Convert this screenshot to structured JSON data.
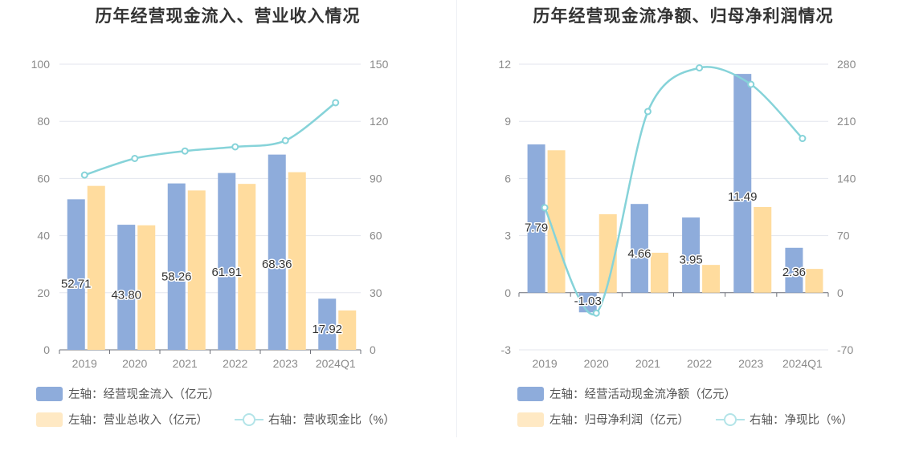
{
  "chart_data": [
    {
      "type": "bar",
      "title": "历年经营现金流入、营业收入情况",
      "categories": [
        "2019",
        "2020",
        "2021",
        "2022",
        "2023",
        "2024Q1"
      ],
      "y_left": {
        "min": 0,
        "max": 100,
        "ticks": [
          "0",
          "20",
          "40",
          "60",
          "80",
          "100"
        ]
      },
      "y_right": {
        "min": 0,
        "max": 150,
        "ticks": [
          "0",
          "30",
          "60",
          "90",
          "120",
          "150"
        ]
      },
      "grid": true,
      "legend_position": "bottom-left",
      "series": [
        {
          "name": "左轴：经营现金流入（亿元）",
          "type": "bar",
          "axis": "left",
          "color": "#8eacdb",
          "values": [
            52.71,
            43.8,
            58.26,
            61.91,
            68.36,
            17.92
          ],
          "labels": [
            "52.71",
            "43.80",
            "58.26",
            "61.91",
            "68.36",
            "17.92"
          ]
        },
        {
          "name": "左轴：营业总收入（亿元）",
          "type": "bar",
          "axis": "left",
          "color": "#ffdc9e",
          "values": [
            57.4,
            43.6,
            55.8,
            58.1,
            62.2,
            13.8
          ]
        },
        {
          "name": "右轴：营收现金比（%）",
          "type": "line",
          "axis": "right",
          "color": "#86d3d9",
          "values": [
            91.8,
            100.5,
            104.4,
            106.6,
            109.9,
            129.8
          ]
        }
      ]
    },
    {
      "type": "bar",
      "title": "历年经营现金流净额、归母净利润情况",
      "categories": [
        "2019",
        "2020",
        "2021",
        "2022",
        "2023",
        "2024Q1"
      ],
      "y_left": {
        "min": -3,
        "max": 12,
        "ticks": [
          "-3",
          "0",
          "3",
          "6",
          "9",
          "12"
        ]
      },
      "y_right": {
        "min": -70,
        "max": 280,
        "ticks": [
          "-70",
          "0",
          "70",
          "140",
          "210",
          "280"
        ]
      },
      "grid": true,
      "legend_position": "bottom-left",
      "series": [
        {
          "name": "左轴：经营活动现金流净额（亿元）",
          "type": "bar",
          "axis": "left",
          "color": "#8eacdb",
          "values": [
            7.79,
            -1.03,
            4.66,
            3.95,
            11.49,
            2.36
          ],
          "labels": [
            "7.79",
            "-1.03",
            "4.66",
            "3.95",
            "11.49",
            "2.36"
          ]
        },
        {
          "name": "左轴：归母净利润（亿元）",
          "type": "bar",
          "axis": "left",
          "color": "#ffdc9e",
          "values": [
            7.48,
            4.12,
            2.1,
            1.46,
            4.5,
            1.25
          ]
        },
        {
          "name": "右轴：净现比（%）",
          "type": "line",
          "axis": "right",
          "color": "#86d3d9",
          "values": [
            104.2,
            -25.0,
            222.0,
            275.5,
            255.3,
            189.0
          ]
        }
      ]
    }
  ]
}
